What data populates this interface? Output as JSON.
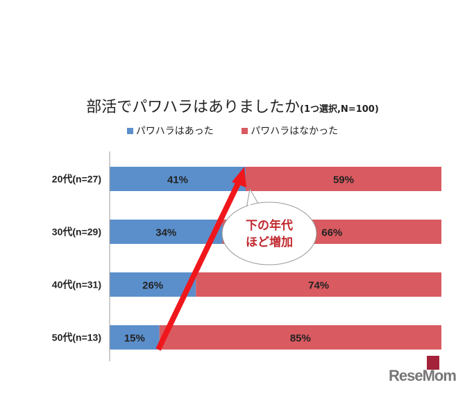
{
  "chart_data": {
    "type": "bar",
    "stacked": true,
    "orientation": "horizontal",
    "title": "部活でパワハラはありましたか",
    "subtitle": "(1つ選択,N=100)",
    "categories": [
      "20代(n=27)",
      "30代(n=29)",
      "40代(n=31)",
      "50代(n=13)"
    ],
    "series": [
      {
        "name": "パワハラはあった",
        "values": [
          41,
          34,
          26,
          15
        ],
        "color": "#5b8fcb"
      },
      {
        "name": "パワハラはなかった",
        "values": [
          59,
          66,
          74,
          85
        ],
        "color": "#d95a60"
      }
    ],
    "xlim": [
      0,
      100
    ],
    "unit": "%",
    "legend": "top",
    "annotation": "下の年代\nほど増加",
    "annotation_lines": [
      "下の年代",
      "ほど増加"
    ]
  },
  "watermark": "ReseMom"
}
